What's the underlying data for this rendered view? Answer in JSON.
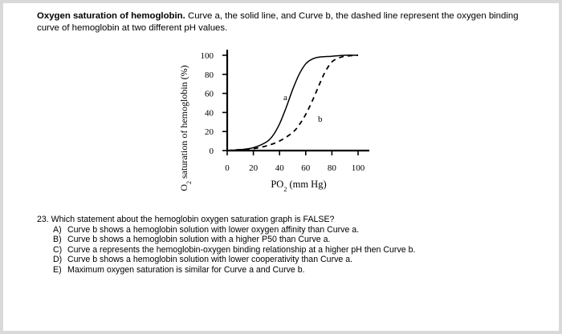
{
  "intro": {
    "heading": "Oxygen saturation of hemoglobin.",
    "text": " Curve a, the solid line, and Curve b, the dashed line represent the oxygen binding curve of hemoglobin at two different pH values."
  },
  "chart_data": {
    "type": "line",
    "ylabel_main": "O",
    "ylabel_sub": "2",
    "ylabel_rest": " saturation of hemoglobin (%)",
    "xlabel_main": "PO",
    "xlabel_sub": "2",
    "xlabel_rest": " (mm Hg)",
    "xlim": [
      0,
      100
    ],
    "ylim": [
      0,
      100
    ],
    "x_ticks": [
      "0",
      "20",
      "40",
      "60",
      "80",
      "100"
    ],
    "y_ticks": [
      "0",
      "20",
      "40",
      "60",
      "80",
      "100"
    ],
    "series": [
      {
        "name": "a",
        "style": "solid",
        "x": [
          0,
          10,
          20,
          30,
          35,
          40,
          45,
          50,
          55,
          60,
          65,
          70,
          80,
          90,
          100
        ],
        "y": [
          0,
          1,
          3,
          9,
          16,
          28,
          45,
          64,
          80,
          91,
          96,
          98,
          99,
          100,
          100
        ]
      },
      {
        "name": "b",
        "style": "dashed",
        "x": [
          0,
          10,
          20,
          30,
          40,
          50,
          55,
          60,
          65,
          70,
          75,
          80,
          85,
          90,
          100
        ],
        "y": [
          0,
          1,
          2,
          5,
          10,
          19,
          27,
          38,
          52,
          68,
          83,
          93,
          97,
          99,
          100
        ]
      }
    ],
    "grid": false,
    "legend": "none"
  },
  "question": {
    "stem": "23. Which statement about the hemoglobin oxygen saturation graph is FALSE?",
    "options": [
      {
        "letter": "A)",
        "text": "Curve b shows a hemoglobin solution with lower oxygen affinity than Curve a."
      },
      {
        "letter": "B)",
        "text": "Curve b shows a hemoglobin solution with a higher P50 than Curve a."
      },
      {
        "letter": "C)",
        "text": "Curve a represents the hemoglobin-oxygen binding relationship at a higher pH then Curve b."
      },
      {
        "letter": "D)",
        "text": "Curve b shows a hemoglobin solution with lower cooperativity than Curve a."
      },
      {
        "letter": "E)",
        "text": "Maximum oxygen saturation is similar for Curve a and Curve b."
      }
    ]
  }
}
